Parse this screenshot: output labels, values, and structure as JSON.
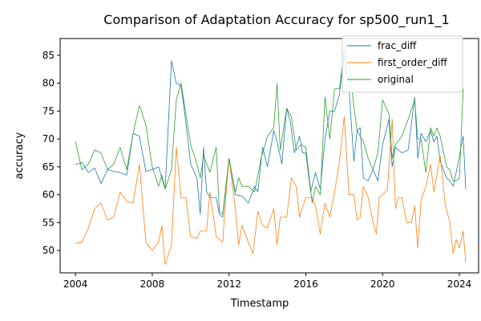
{
  "chart_data": {
    "type": "line",
    "title": "Comparison of Adaptation Accuracy for sp500_run1_1",
    "xlabel": "Timestamp",
    "ylabel": "accuracy",
    "xlim": [
      2003.2,
      2025.0
    ],
    "ylim": [
      46.0,
      88.0
    ],
    "x_ticks": [
      2004,
      2008,
      2012,
      2016,
      2020,
      2024
    ],
    "y_ticks": [
      50,
      55,
      60,
      65,
      70,
      75,
      80,
      85
    ],
    "legend_position": "top-right",
    "grid": false,
    "series": [
      {
        "name": "frac_diff",
        "color": "#1f77b4",
        "points": [
          [
            2004.0,
            65.4
          ],
          [
            2004.33,
            65.8
          ],
          [
            2004.67,
            64.0
          ],
          [
            2005.0,
            64.8
          ],
          [
            2005.33,
            62.0
          ],
          [
            2005.67,
            64.5
          ],
          [
            2006.0,
            64.2
          ],
          [
            2006.33,
            64.0
          ],
          [
            2006.67,
            63.5
          ],
          [
            2007.0,
            71.0
          ],
          [
            2007.33,
            70.5
          ],
          [
            2007.67,
            64.2
          ],
          [
            2008.0,
            64.5
          ],
          [
            2008.33,
            65.0
          ],
          [
            2008.67,
            61.0
          ],
          [
            2009.0,
            84.0
          ],
          [
            2009.25,
            80.0
          ],
          [
            2009.5,
            79.5
          ],
          [
            2009.75,
            73.0
          ],
          [
            2010.0,
            65.5
          ],
          [
            2010.33,
            63.0
          ],
          [
            2010.5,
            56.5
          ],
          [
            2010.67,
            68.5
          ],
          [
            2010.83,
            60.5
          ],
          [
            2011.0,
            59.5
          ],
          [
            2011.33,
            59.5
          ],
          [
            2011.5,
            56.5
          ],
          [
            2011.67,
            56.0
          ],
          [
            2012.0,
            66.5
          ],
          [
            2012.33,
            60.0
          ],
          [
            2012.67,
            59.8
          ],
          [
            2013.0,
            58.5
          ],
          [
            2013.33,
            61.5
          ],
          [
            2013.5,
            60.5
          ],
          [
            2013.75,
            68.5
          ],
          [
            2014.0,
            65.0
          ],
          [
            2014.33,
            71.5
          ],
          [
            2014.5,
            69.5
          ],
          [
            2014.75,
            65.5
          ],
          [
            2015.0,
            75.5
          ],
          [
            2015.2,
            73.0
          ],
          [
            2015.4,
            67.5
          ],
          [
            2015.67,
            70.5
          ],
          [
            2015.83,
            67.5
          ],
          [
            2016.0,
            67.5
          ],
          [
            2016.25,
            60.5
          ],
          [
            2016.5,
            64.0
          ],
          [
            2016.75,
            61.0
          ],
          [
            2017.0,
            70.0
          ],
          [
            2017.25,
            75.0
          ],
          [
            2017.5,
            75.0
          ],
          [
            2017.75,
            78.0
          ],
          [
            2018.0,
            85.0
          ],
          [
            2018.25,
            79.0
          ],
          [
            2018.5,
            66.0
          ],
          [
            2018.67,
            71.5
          ],
          [
            2018.83,
            72.0
          ],
          [
            2019.0,
            63.0
          ],
          [
            2019.25,
            62.5
          ],
          [
            2019.5,
            64.5
          ],
          [
            2019.75,
            62.5
          ],
          [
            2020.0,
            69.0
          ],
          [
            2020.33,
            73.5
          ],
          [
            2020.5,
            65.0
          ],
          [
            2020.67,
            68.5
          ],
          [
            2021.0,
            67.5
          ],
          [
            2021.33,
            68.0
          ],
          [
            2021.67,
            77.5
          ],
          [
            2021.83,
            66.5
          ],
          [
            2022.0,
            71.0
          ],
          [
            2022.25,
            69.5
          ],
          [
            2022.5,
            71.5
          ],
          [
            2022.67,
            69.5
          ],
          [
            2022.83,
            70.5
          ],
          [
            2023.0,
            66.0
          ],
          [
            2023.33,
            63.0
          ],
          [
            2023.5,
            62.5
          ],
          [
            2023.67,
            61.5
          ],
          [
            2023.83,
            64.0
          ],
          [
            2024.2,
            70.5
          ],
          [
            2024.33,
            61.0
          ]
        ]
      },
      {
        "name": "first_order_diff",
        "color": "#ff7f0e",
        "points": [
          [
            2004.0,
            51.3
          ],
          [
            2004.33,
            51.5
          ],
          [
            2004.67,
            54.0
          ],
          [
            2005.0,
            57.5
          ],
          [
            2005.33,
            58.5
          ],
          [
            2005.67,
            55.5
          ],
          [
            2006.0,
            56.0
          ],
          [
            2006.33,
            60.5
          ],
          [
            2006.67,
            58.8
          ],
          [
            2007.0,
            58.5
          ],
          [
            2007.33,
            65.5
          ],
          [
            2007.67,
            51.5
          ],
          [
            2008.0,
            50.0
          ],
          [
            2008.33,
            51.5
          ],
          [
            2008.5,
            54.5
          ],
          [
            2008.67,
            47.5
          ],
          [
            2009.0,
            51.0
          ],
          [
            2009.25,
            68.5
          ],
          [
            2009.5,
            59.5
          ],
          [
            2009.75,
            59.5
          ],
          [
            2010.0,
            52.5
          ],
          [
            2010.33,
            52.2
          ],
          [
            2010.5,
            53.5
          ],
          [
            2010.83,
            53.5
          ],
          [
            2011.0,
            60.5
          ],
          [
            2011.33,
            52.5
          ],
          [
            2011.67,
            51.5
          ],
          [
            2011.83,
            59.5
          ],
          [
            2012.0,
            66.5
          ],
          [
            2012.33,
            57.5
          ],
          [
            2012.5,
            51.0
          ],
          [
            2012.67,
            54.5
          ],
          [
            2013.0,
            51.5
          ],
          [
            2013.25,
            49.5
          ],
          [
            2013.5,
            57.0
          ],
          [
            2013.75,
            54.5
          ],
          [
            2014.0,
            54.0
          ],
          [
            2014.33,
            57.5
          ],
          [
            2014.5,
            51.0
          ],
          [
            2014.67,
            56.0
          ],
          [
            2015.0,
            56.0
          ],
          [
            2015.25,
            63.0
          ],
          [
            2015.5,
            61.5
          ],
          [
            2015.67,
            56.0
          ],
          [
            2016.0,
            59.5
          ],
          [
            2016.33,
            59.5
          ],
          [
            2016.5,
            58.0
          ],
          [
            2016.75,
            53.0
          ],
          [
            2017.0,
            58.5
          ],
          [
            2017.25,
            56.0
          ],
          [
            2017.5,
            60.5
          ],
          [
            2017.75,
            66.0
          ],
          [
            2018.0,
            74.0
          ],
          [
            2018.25,
            60.0
          ],
          [
            2018.5,
            60.0
          ],
          [
            2018.67,
            55.5
          ],
          [
            2018.83,
            56.0
          ],
          [
            2019.0,
            61.5
          ],
          [
            2019.25,
            59.5
          ],
          [
            2019.5,
            55.0
          ],
          [
            2019.67,
            53.0
          ],
          [
            2019.83,
            59.5
          ],
          [
            2020.0,
            60.0
          ],
          [
            2020.25,
            61.0
          ],
          [
            2020.5,
            73.5
          ],
          [
            2020.67,
            57.5
          ],
          [
            2020.83,
            59.5
          ],
          [
            2021.0,
            59.5
          ],
          [
            2021.25,
            55.0
          ],
          [
            2021.5,
            55.0
          ],
          [
            2021.67,
            58.0
          ],
          [
            2021.83,
            50.5
          ],
          [
            2022.0,
            59.0
          ],
          [
            2022.25,
            61.5
          ],
          [
            2022.5,
            65.5
          ],
          [
            2022.67,
            60.5
          ],
          [
            2023.0,
            67.0
          ],
          [
            2023.25,
            58.5
          ],
          [
            2023.5,
            55.0
          ],
          [
            2023.67,
            49.5
          ],
          [
            2023.83,
            52.0
          ],
          [
            2024.0,
            50.5
          ],
          [
            2024.2,
            53.5
          ],
          [
            2024.33,
            47.8
          ]
        ]
      },
      {
        "name": "original",
        "color": "#2ca02c",
        "points": [
          [
            2004.0,
            69.5
          ],
          [
            2004.33,
            64.5
          ],
          [
            2004.67,
            65.5
          ],
          [
            2005.0,
            68.0
          ],
          [
            2005.33,
            67.5
          ],
          [
            2005.67,
            64.5
          ],
          [
            2006.0,
            65.5
          ],
          [
            2006.33,
            68.5
          ],
          [
            2006.67,
            64.5
          ],
          [
            2007.0,
            71.0
          ],
          [
            2007.33,
            76.0
          ],
          [
            2007.67,
            72.5
          ],
          [
            2008.0,
            65.0
          ],
          [
            2008.33,
            61.5
          ],
          [
            2008.5,
            63.5
          ],
          [
            2008.67,
            61.0
          ],
          [
            2009.0,
            64.5
          ],
          [
            2009.25,
            77.0
          ],
          [
            2009.5,
            80.0
          ],
          [
            2009.75,
            74.5
          ],
          [
            2010.0,
            69.0
          ],
          [
            2010.33,
            65.5
          ],
          [
            2010.5,
            63.0
          ],
          [
            2010.67,
            67.0
          ],
          [
            2011.0,
            64.0
          ],
          [
            2011.33,
            68.5
          ],
          [
            2011.5,
            57.0
          ],
          [
            2011.67,
            56.5
          ],
          [
            2012.0,
            66.5
          ],
          [
            2012.33,
            60.5
          ],
          [
            2012.5,
            63.0
          ],
          [
            2012.67,
            61.5
          ],
          [
            2013.0,
            61.5
          ],
          [
            2013.33,
            60.5
          ],
          [
            2013.67,
            66.5
          ],
          [
            2014.0,
            70.5
          ],
          [
            2014.33,
            72.0
          ],
          [
            2014.5,
            80.0
          ],
          [
            2014.67,
            68.0
          ],
          [
            2015.0,
            75.5
          ],
          [
            2015.25,
            74.0
          ],
          [
            2015.5,
            68.0
          ],
          [
            2015.75,
            69.0
          ],
          [
            2016.0,
            68.5
          ],
          [
            2016.33,
            58.5
          ],
          [
            2016.5,
            61.5
          ],
          [
            2016.75,
            60.0
          ],
          [
            2017.0,
            77.5
          ],
          [
            2017.25,
            70.0
          ],
          [
            2017.5,
            79.0
          ],
          [
            2017.75,
            79.0
          ],
          [
            2018.0,
            86.0
          ],
          [
            2018.25,
            83.0
          ],
          [
            2018.5,
            76.0
          ],
          [
            2018.67,
            71.5
          ],
          [
            2018.83,
            70.5
          ],
          [
            2019.0,
            69.5
          ],
          [
            2019.25,
            66.5
          ],
          [
            2019.5,
            64.5
          ],
          [
            2019.75,
            67.5
          ],
          [
            2020.0,
            77.0
          ],
          [
            2020.33,
            74.5
          ],
          [
            2020.5,
            66.5
          ],
          [
            2020.67,
            69.0
          ],
          [
            2021.0,
            70.5
          ],
          [
            2021.33,
            73.5
          ],
          [
            2021.67,
            77.0
          ],
          [
            2021.83,
            70.0
          ],
          [
            2022.0,
            70.0
          ],
          [
            2022.25,
            64.0
          ],
          [
            2022.5,
            72.0
          ],
          [
            2022.67,
            70.5
          ],
          [
            2022.83,
            72.0
          ],
          [
            2023.0,
            70.5
          ],
          [
            2023.33,
            65.0
          ],
          [
            2023.5,
            64.5
          ],
          [
            2023.67,
            62.5
          ],
          [
            2023.83,
            62.5
          ],
          [
            2024.0,
            63.0
          ],
          [
            2024.2,
            79.0
          ]
        ]
      }
    ]
  }
}
